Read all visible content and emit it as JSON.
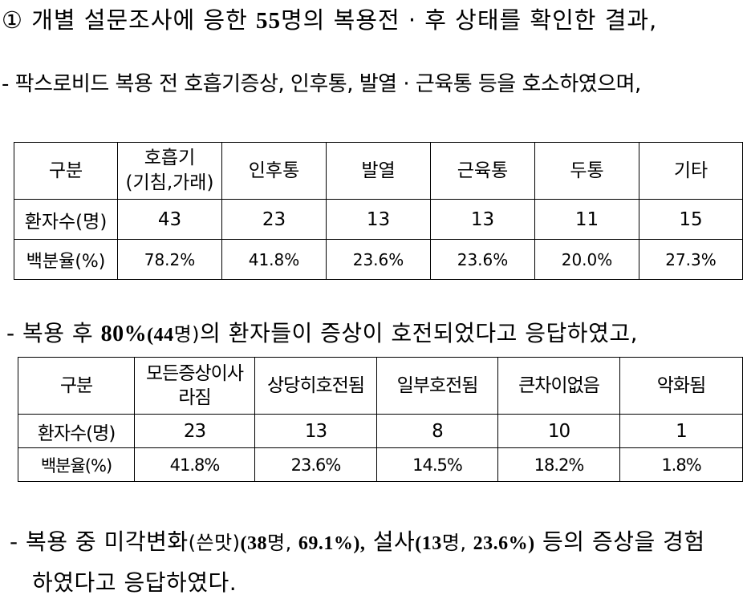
{
  "intro": {
    "bullet": "①",
    "part1": " 개별 설문조사에 응한 ",
    "count": "55",
    "part2": "명의 복용전 · 후 상태를 확인한 결과,"
  },
  "symptoms_before": {
    "text": "- 팍스로비드 복용 전 호흡기증상, 인후통, 발열 · 근육통 등을 호소하였으며,"
  },
  "table1": {
    "headers": [
      "구분",
      "호흡기",
      "(기침,가래)",
      "인후통",
      "발열",
      "근육통",
      "두통",
      "기타"
    ],
    "row_labels": [
      "환자수(명)",
      "백분율(%)"
    ],
    "counts": [
      "43",
      "23",
      "13",
      "13",
      "11",
      "15"
    ],
    "percents": [
      "78.2%",
      "41.8%",
      "23.6%",
      "23.6%",
      "20.0%",
      "27.3%"
    ]
  },
  "improvement": {
    "part1": " - 복용 후 ",
    "pct": "80%",
    "part2": "(44",
    "part3": "명)",
    "part4": "의 환자들이 증상이 호전되었다고 응답하였고,"
  },
  "table2": {
    "headers": [
      "구분",
      "모든증상이사",
      "라짐",
      "상당히호전됨",
      "일부호전됨",
      "큰차이없음",
      "악화됨"
    ],
    "row_labels": [
      "환자수(명)",
      "백분율(%)"
    ],
    "counts": [
      "23",
      "13",
      "8",
      "10",
      "1"
    ],
    "percents": [
      "41.8%",
      "23.6%",
      "14.5%",
      "18.2%",
      "1.8%"
    ]
  },
  "side_effects": {
    "part1": " - 복용 중 미각변화",
    "part2": "(쓴맛)",
    "part3": "(38",
    "part4": "명, ",
    "part5": "69.1%),",
    "part6": " 설사",
    "part7": "(13",
    "part8": "명, ",
    "part9": "23.6%)",
    "part10": "  등의 증상을 경험",
    "part11": "하였다고 응답하였다."
  }
}
